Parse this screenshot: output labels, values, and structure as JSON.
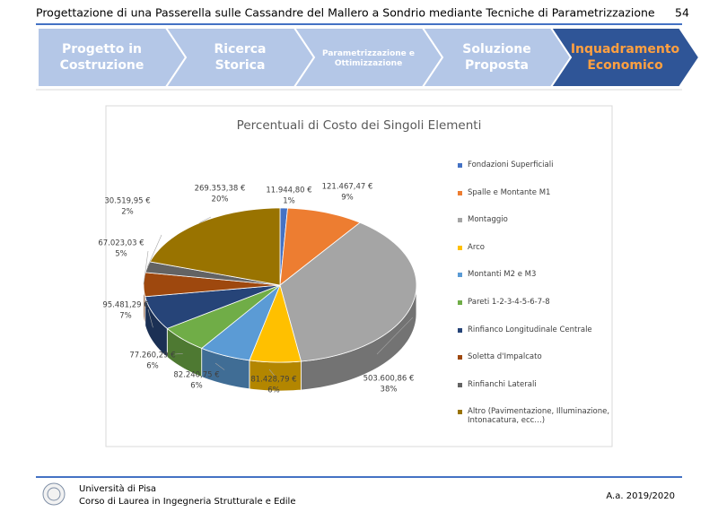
{
  "header": {
    "title": "Progettazione di una Passerella sulle Cassandre del Mallero a Sondrio mediante Tecniche di Parametrizzazione",
    "page_number": "54"
  },
  "nav": {
    "steps": [
      "Progetto in Costruzione",
      "Ricerca Storica",
      "Parametrizzazione e Ottimizzazione",
      "Soluzione Proposta",
      "Inquadramento Economico"
    ]
  },
  "chart_data": {
    "type": "pie3d",
    "title": "Percentuali di Costo dei Singoli Elementi",
    "categories": [
      "Fondazioni Superficiali",
      "Spalle e Montante M1",
      "Montaggio",
      "Arco",
      "Montanti M2 e M3",
      "Pareti 1-2-3-4-5-6-7-8",
      "Rinfianco Longitudinale Centrale",
      "Soletta d'Impalcato",
      "Rinfianchi Laterali",
      "Altro (Pavimentazione, Illuminazione, Intonacatura, ecc…)"
    ],
    "values": [
      11944.8,
      121467.47,
      503600.86,
      81428.79,
      82240.75,
      77260.29,
      95481.29,
      67023.03,
      30519.95,
      269353.38
    ],
    "value_labels": [
      "11.944,80 €",
      "121.467,47 €",
      "503.600,86 €",
      "81.428,79 €",
      "82.240,75 €",
      "77.260,29 €",
      "95.481,29 €",
      "67.023,03 €",
      "30.519,95 €",
      "269.353,38 €"
    ],
    "percent_labels": [
      "1%",
      "9%",
      "38%",
      "6%",
      "6%",
      "6%",
      "7%",
      "5%",
      "2%",
      "20%"
    ],
    "colors": [
      "#4472c4",
      "#ed7d31",
      "#a5a5a5",
      "#ffc000",
      "#5b9bd5",
      "#70ad47",
      "#264478",
      "#9e480e",
      "#636363",
      "#997300"
    ],
    "legend": "right"
  },
  "footer": {
    "university": "Università di Pisa",
    "course": "Corso di Laurea in Ingegneria Strutturale e Edile",
    "year": "A.a. 2019/2020"
  }
}
